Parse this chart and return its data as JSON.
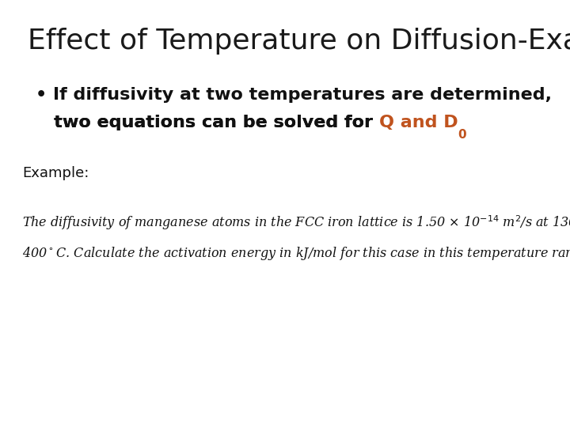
{
  "title": "Effect of Temperature on Diffusion-Example",
  "title_fontsize": 26,
  "title_color": "#1a1a1a",
  "background_color": "#ffffff",
  "bullet1": "• If diffusivity at two temperatures are determined,",
  "bullet2_black": "   two equations can be solved for ",
  "bullet2_orange": "Q and D",
  "bullet2_sub": "0",
  "bullet_fontsize": 16,
  "bullet_color": "#111111",
  "orange_color": "#c0531e",
  "example_label": "Example:",
  "example_fontsize": 13,
  "body_fontsize": 11.5,
  "body_color": "#111111"
}
